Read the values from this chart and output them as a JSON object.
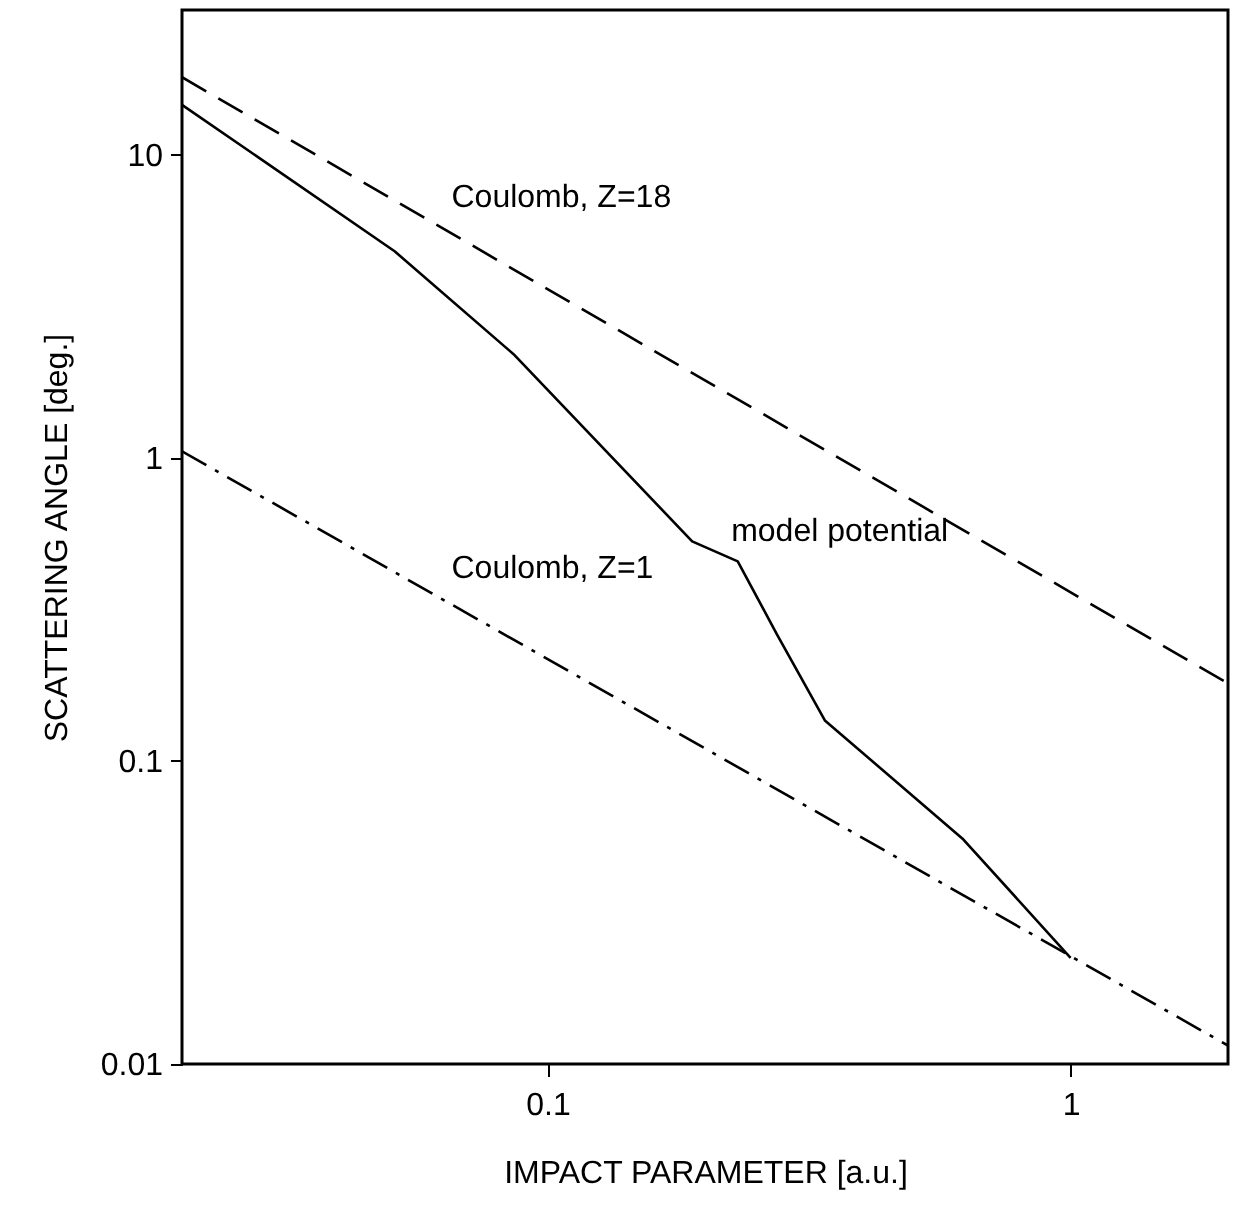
{
  "chart_data": {
    "type": "line",
    "xlabel": "IMPACT PARAMETER [a.u.]",
    "ylabel": "SCATTERING  ANGLE [deg.]",
    "log": "xy",
    "grid": false,
    "legend": false,
    "marker": "none",
    "xlim": [
      0.02,
      2
    ],
    "ylim": [
      0.01,
      30
    ],
    "xticks": [
      0.1,
      1
    ],
    "yticks": [
      0.01,
      0.1,
      1,
      10
    ],
    "series": [
      {
        "name": "Coulomb, Z=18",
        "color": "#000000",
        "line_style": "dashed",
        "x": [
          0.02,
          2
        ],
        "values": [
          18,
          0.18
        ]
      },
      {
        "name": "Coulomb, Z=1",
        "color": "#000000",
        "line_style": "dashdot",
        "x": [
          0.02,
          2
        ],
        "values": [
          1.05,
          0.0115
        ]
      },
      {
        "name": "model potential",
        "color": "#000000",
        "line_style": "solid",
        "x": [
          0.02,
          0.051,
          0.086,
          0.189,
          0.231,
          0.275,
          0.339,
          0.624,
          1
        ],
        "values": [
          14.6,
          4.8,
          2.2,
          0.53,
          0.455,
          0.26,
          0.136,
          0.055,
          0.0224
        ]
      }
    ]
  }
}
